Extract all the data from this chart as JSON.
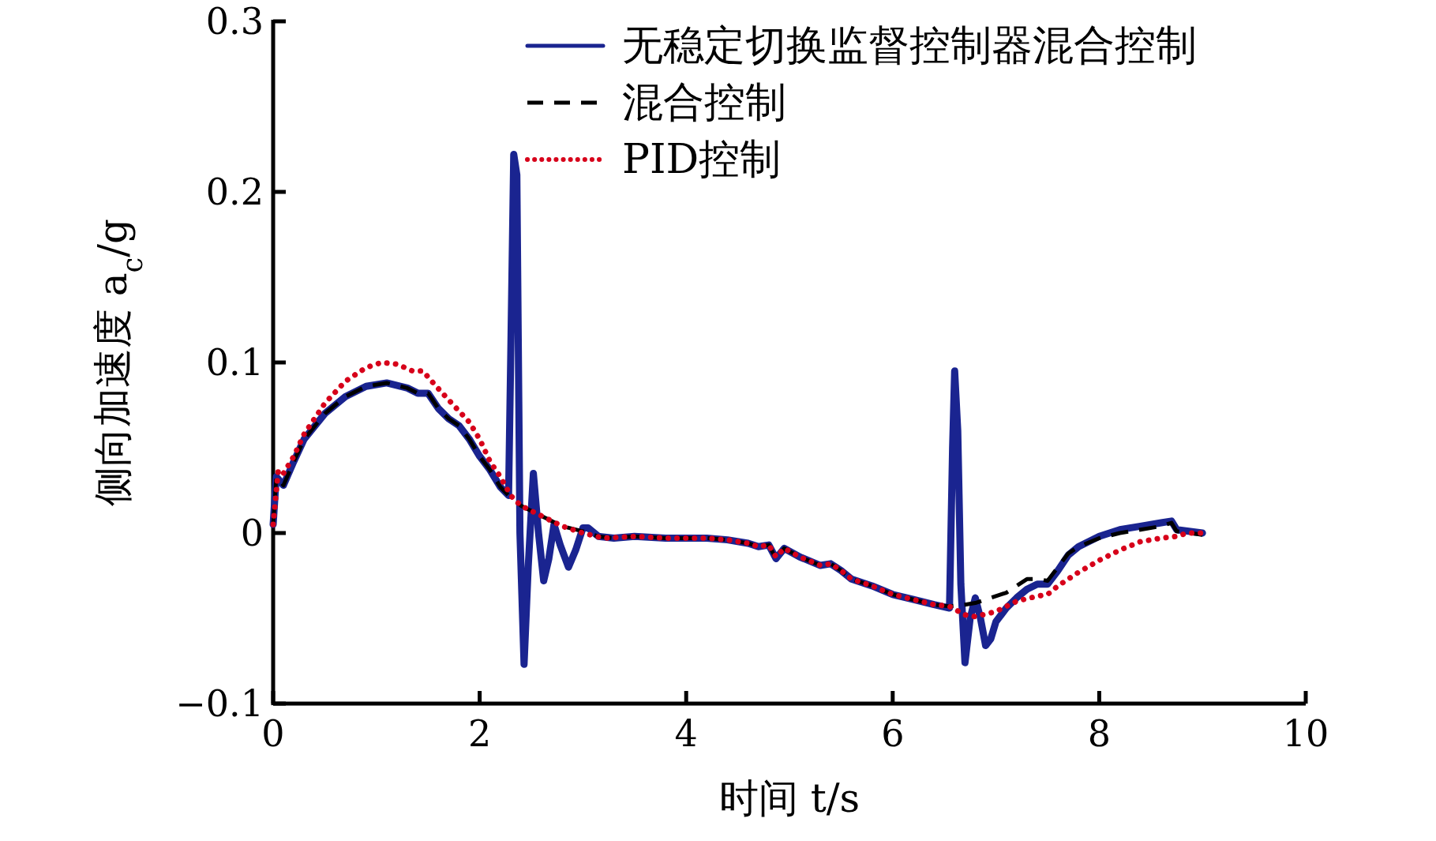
{
  "chart_data": {
    "type": "line",
    "xlabel": "时间 t/s",
    "ylabel": "侧向加速度 a$_{c}$/g",
    "xlim": [
      0,
      10
    ],
    "xticks": [
      0,
      2,
      4,
      6,
      8,
      10
    ],
    "ylim": [
      -0.1,
      0.3
    ],
    "yticks": [
      -0.1,
      0,
      0.1,
      0.2,
      0.3
    ],
    "grid": false,
    "legend": "top right",
    "series": [
      {
        "name": "无稳定切换监督控制器混合控制",
        "color": "#1a2490",
        "line_style": "solid",
        "x": [
          0,
          0.03,
          0.1,
          0.2,
          0.3,
          0.5,
          0.7,
          0.9,
          1.1,
          1.3,
          1.4,
          1.5,
          1.6,
          1.7,
          1.8,
          1.9,
          2.0,
          2.1,
          2.2,
          2.28,
          2.3,
          2.33,
          2.36,
          2.39,
          2.43,
          2.47,
          2.52,
          2.57,
          2.62,
          2.67,
          2.72,
          2.78,
          2.86,
          2.93,
          3.0,
          3.05,
          3.15,
          3.3,
          3.5,
          3.8,
          4.2,
          4.4,
          4.6,
          4.7,
          4.8,
          4.87,
          4.95,
          5.1,
          5.3,
          5.4,
          5.5,
          5.6,
          5.8,
          6.0,
          6.2,
          6.4,
          6.55,
          6.58,
          6.6,
          6.63,
          6.66,
          6.7,
          6.75,
          6.8,
          6.85,
          6.9,
          6.95,
          7.0,
          7.1,
          7.2,
          7.3,
          7.4,
          7.5,
          7.6,
          7.7,
          7.8,
          8.0,
          8.2,
          8.4,
          8.6,
          8.7,
          8.75,
          9.0
        ],
        "values": [
          0.005,
          0.033,
          0.028,
          0.042,
          0.055,
          0.07,
          0.08,
          0.086,
          0.088,
          0.085,
          0.082,
          0.082,
          0.073,
          0.067,
          0.063,
          0.055,
          0.045,
          0.037,
          0.027,
          0.022,
          0.1,
          0.222,
          0.21,
          0.0,
          -0.077,
          -0.02,
          0.035,
          0.0,
          -0.028,
          -0.015,
          0.005,
          -0.007,
          -0.02,
          -0.01,
          0.003,
          0.003,
          -0.002,
          -0.003,
          -0.002,
          -0.003,
          -0.003,
          -0.004,
          -0.006,
          -0.008,
          -0.007,
          -0.015,
          -0.009,
          -0.014,
          -0.019,
          -0.018,
          -0.022,
          -0.027,
          -0.031,
          -0.036,
          -0.039,
          -0.042,
          -0.044,
          0.05,
          0.095,
          0.06,
          -0.03,
          -0.076,
          -0.05,
          -0.038,
          -0.05,
          -0.066,
          -0.062,
          -0.052,
          -0.044,
          -0.038,
          -0.033,
          -0.03,
          -0.03,
          -0.022,
          -0.013,
          -0.008,
          -0.002,
          0.002,
          0.004,
          0.006,
          0.007,
          0.002,
          0.0
        ]
      },
      {
        "name": "混合控制",
        "color": "#000000",
        "line_style": "dashed",
        "x": [
          0,
          0.03,
          0.1,
          0.2,
          0.3,
          0.5,
          0.7,
          0.9,
          1.1,
          1.3,
          1.4,
          1.5,
          1.6,
          1.7,
          1.8,
          1.9,
          2.0,
          2.1,
          2.2,
          2.28,
          2.4,
          2.6,
          2.8,
          3.0,
          3.15,
          3.3,
          3.5,
          3.8,
          4.2,
          4.4,
          4.6,
          4.7,
          4.8,
          4.87,
          4.95,
          5.1,
          5.3,
          5.4,
          5.5,
          5.6,
          5.8,
          6.0,
          6.2,
          6.4,
          6.55,
          6.7,
          6.8,
          6.95,
          7.1,
          7.3,
          7.4,
          7.5,
          7.6,
          7.7,
          7.8,
          8.0,
          8.2,
          8.4,
          8.6,
          8.7,
          8.75,
          9.0
        ],
        "values": [
          0.005,
          0.033,
          0.028,
          0.042,
          0.055,
          0.07,
          0.08,
          0.086,
          0.088,
          0.085,
          0.082,
          0.082,
          0.073,
          0.067,
          0.063,
          0.055,
          0.045,
          0.037,
          0.027,
          0.022,
          0.016,
          0.01,
          0.004,
          0.001,
          -0.002,
          -0.003,
          -0.002,
          -0.003,
          -0.003,
          -0.004,
          -0.006,
          -0.008,
          -0.007,
          -0.015,
          -0.009,
          -0.014,
          -0.019,
          -0.018,
          -0.022,
          -0.027,
          -0.031,
          -0.036,
          -0.039,
          -0.042,
          -0.043,
          -0.042,
          -0.041,
          -0.038,
          -0.035,
          -0.027,
          -0.027,
          -0.028,
          -0.02,
          -0.012,
          -0.008,
          -0.003,
          0.0,
          0.002,
          0.004,
          0.006,
          0.001,
          -0.001
        ]
      },
      {
        "name": "PID控制",
        "color": "#d7001a",
        "line_style": "dotted",
        "x": [
          0,
          0.05,
          0.1,
          0.2,
          0.3,
          0.5,
          0.7,
          0.9,
          1.05,
          1.2,
          1.35,
          1.45,
          1.55,
          1.7,
          1.9,
          2.0,
          2.1,
          2.2,
          2.3,
          2.4,
          2.6,
          2.8,
          3.0,
          3.2,
          3.5,
          3.8,
          4.2,
          4.4,
          4.6,
          4.7,
          4.8,
          4.87,
          4.95,
          5.1,
          5.3,
          5.4,
          5.5,
          5.6,
          5.8,
          6.0,
          6.2,
          6.4,
          6.55,
          6.7,
          6.8,
          7.0,
          7.2,
          7.4,
          7.5,
          7.6,
          7.8,
          8.0,
          8.2,
          8.4,
          8.6,
          8.75,
          8.85,
          9.0
        ],
        "values": [
          0.005,
          0.037,
          0.035,
          0.045,
          0.058,
          0.076,
          0.089,
          0.097,
          0.1,
          0.099,
          0.095,
          0.095,
          0.088,
          0.078,
          0.065,
          0.055,
          0.042,
          0.033,
          0.022,
          0.016,
          0.01,
          0.004,
          0.0,
          -0.003,
          -0.002,
          -0.003,
          -0.003,
          -0.004,
          -0.006,
          -0.008,
          -0.007,
          -0.014,
          -0.009,
          -0.014,
          -0.019,
          -0.018,
          -0.022,
          -0.027,
          -0.031,
          -0.036,
          -0.039,
          -0.042,
          -0.043,
          -0.048,
          -0.049,
          -0.046,
          -0.04,
          -0.037,
          -0.036,
          -0.031,
          -0.023,
          -0.016,
          -0.01,
          -0.005,
          -0.003,
          -0.002,
          0.0,
          0.0
        ]
      }
    ]
  }
}
